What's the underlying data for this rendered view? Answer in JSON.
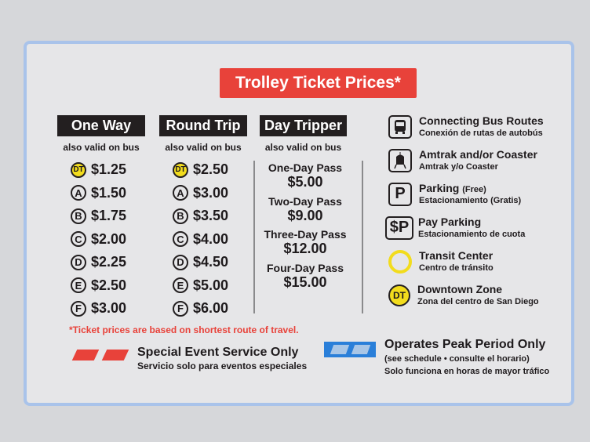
{
  "title": "Trolley Ticket Prices*",
  "columns": [
    {
      "header": "One Way",
      "sub": "also valid on bus",
      "rows": [
        {
          "zone": "DT",
          "price": "$1.25"
        },
        {
          "zone": "A",
          "price": "$1.50"
        },
        {
          "zone": "B",
          "price": "$1.75"
        },
        {
          "zone": "C",
          "price": "$2.00"
        },
        {
          "zone": "D",
          "price": "$2.25"
        },
        {
          "zone": "E",
          "price": "$2.50"
        },
        {
          "zone": "F",
          "price": "$3.00"
        }
      ]
    },
    {
      "header": "Round Trip",
      "sub": "also valid on bus",
      "rows": [
        {
          "zone": "DT",
          "price": "$2.50"
        },
        {
          "zone": "A",
          "price": "$3.00"
        },
        {
          "zone": "B",
          "price": "$3.50"
        },
        {
          "zone": "C",
          "price": "$4.00"
        },
        {
          "zone": "D",
          "price": "$4.50"
        },
        {
          "zone": "E",
          "price": "$5.00"
        },
        {
          "zone": "F",
          "price": "$6.00"
        }
      ]
    }
  ],
  "day_tripper": {
    "header": "Day Tripper",
    "sub": "also valid on bus",
    "passes": [
      {
        "label": "One-Day Pass",
        "price": "$5.00"
      },
      {
        "label": "Two-Day Pass",
        "price": "$9.00"
      },
      {
        "label": "Three-Day Pass",
        "price": "$12.00"
      },
      {
        "label": "Four-Day Pass",
        "price": "$15.00"
      }
    ]
  },
  "legend": [
    {
      "icon": "bus-icon",
      "title": "Connecting Bus Routes",
      "extra": "",
      "sub": "Conexión de rutas de autobús"
    },
    {
      "icon": "train-icon",
      "title": "Amtrak and/or Coaster",
      "extra": "",
      "sub": "Amtrak y/o Coaster"
    },
    {
      "icon": "parking-icon",
      "glyph": "P",
      "title": "Parking",
      "extra": "(Free)",
      "sub": "Estacionamiento (Gratis)"
    },
    {
      "icon": "pay-parking-icon",
      "glyph": "$P",
      "title": "Pay Parking",
      "extra": "",
      "sub": "Estacionamiento de cuota"
    },
    {
      "icon": "transit-center-icon",
      "title": "Transit Center",
      "extra": "",
      "sub": "Centro de tránsito"
    },
    {
      "icon": "downtown-zone-icon",
      "glyph": "DT",
      "title": "Downtown Zone",
      "extra": "",
      "sub": "Zona del centro de San Diego"
    }
  ],
  "note": "*Ticket prices are based on shortest route of travel.",
  "special": {
    "title": "Special Event Service Only",
    "sub": "Servicio solo para eventos especiales",
    "color": "#e8423a"
  },
  "peak": {
    "title": "Operates Peak Period Only",
    "sub1": "(see schedule • consulte el horario)",
    "sub2": "Solo funciona en horas de mayor tráfico",
    "color": "#2a7fd9"
  },
  "colors": {
    "red": "#e8423a",
    "yellow": "#f2dc1d",
    "blue_border": "#a9c3ea"
  }
}
